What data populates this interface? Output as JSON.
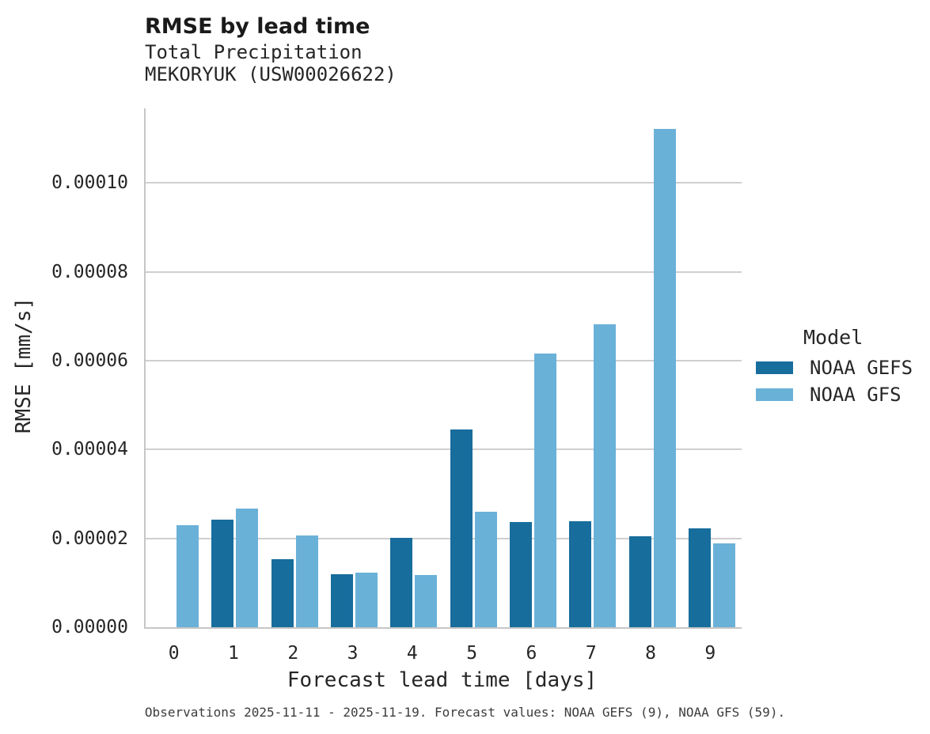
{
  "header": {
    "title": "RMSE by lead time",
    "subtitle_line1": "Total Precipitation",
    "subtitle_line2": "MEKORYUK (USW00026622)"
  },
  "footer": {
    "caption": "Observations 2025-11-11 - 2025-11-19. Forecast values: NOAA GEFS (9), NOAA GFS (59)."
  },
  "colors": {
    "gefs_dark_blue": "#176d9c",
    "gfs_light_blue": "#6ab1d8",
    "gridline_gray": "#cfcfcf",
    "spine_gray": "#c6c6c6",
    "text_dark": "#262626"
  },
  "chart_data": {
    "type": "bar",
    "title": "RMSE by lead time",
    "subtitle": [
      "Total Precipitation",
      "MEKORYUK (USW00026622)"
    ],
    "xlabel": "Forecast lead time [days]",
    "ylabel": "RMSE [mm/s]",
    "categories": [
      "0",
      "1",
      "2",
      "3",
      "4",
      "5",
      "6",
      "7",
      "8",
      "9"
    ],
    "series": [
      {
        "name": "NOAA GEFS",
        "color": "#176d9c",
        "values": [
          null,
          2.42e-05,
          1.53e-05,
          1.2e-05,
          2.02e-05,
          4.46e-05,
          2.36e-05,
          2.38e-05,
          2.04e-05,
          2.23e-05
        ]
      },
      {
        "name": "NOAA GFS",
        "color": "#6ab1d8",
        "values": [
          2.29e-05,
          2.67e-05,
          2.06e-05,
          1.22e-05,
          1.18e-05,
          2.6e-05,
          6.16e-05,
          6.82e-05,
          0.0001122,
          1.88e-05
        ]
      }
    ],
    "ylim": [
      0,
      0.0001168
    ],
    "yticks": [
      {
        "value": 0.0,
        "label": "0.00000"
      },
      {
        "value": 2e-05,
        "label": "0.00002"
      },
      {
        "value": 4e-05,
        "label": "0.00004"
      },
      {
        "value": 6e-05,
        "label": "0.00006"
      },
      {
        "value": 8e-05,
        "label": "0.00008"
      },
      {
        "value": 0.0001,
        "label": "0.00010"
      }
    ],
    "grid": "horizontal",
    "legend_position": "right",
    "legend": {
      "title": "Model"
    }
  }
}
